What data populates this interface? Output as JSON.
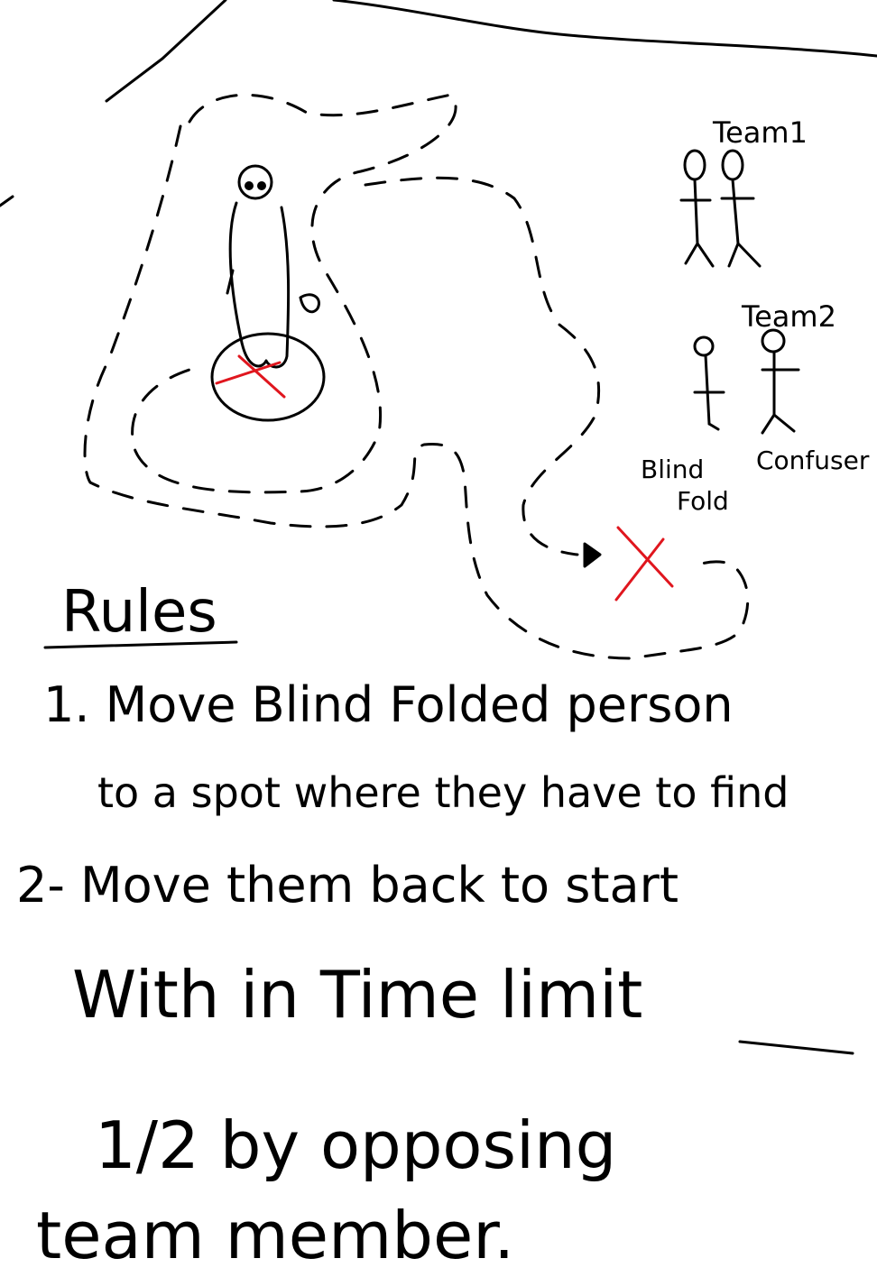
{
  "teams": {
    "team1": {
      "label": "Team1"
    },
    "team2": {
      "label": "Team2"
    }
  },
  "roles": {
    "blindfold_line1": "Blind",
    "blindfold_line2": "Fold",
    "confuser": "Confuser"
  },
  "rules": {
    "heading": "Rules",
    "lines": [
      "1. Move Blind Folded person",
      "to a spot where they have to find",
      "2- Move them back to start",
      "With in Time limit",
      "1/2 by opposing",
      "team member."
    ]
  },
  "colors": {
    "ink": "#000000",
    "marker": "#e0161e",
    "paper": "#ffffff"
  }
}
